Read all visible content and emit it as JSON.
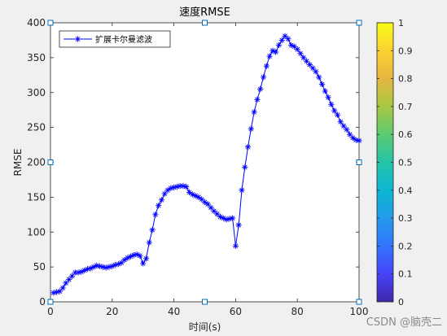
{
  "chart_data": {
    "type": "line",
    "title": "速度RMSE",
    "xlabel": "时间(s)",
    "ylabel": "RMSE",
    "xlim": [
      0,
      100
    ],
    "ylim": [
      0,
      400
    ],
    "x_ticks": [
      0,
      20,
      40,
      60,
      80,
      100
    ],
    "y_ticks": [
      0,
      50,
      100,
      150,
      200,
      250,
      300,
      350,
      400
    ],
    "grid": false,
    "legend_position": "top-left",
    "series": [
      {
        "name": "扩展卡尔曼滤波",
        "color": "#0000ff",
        "marker": "asterisk",
        "x": [
          1,
          2,
          3,
          4,
          5,
          6,
          7,
          8,
          9,
          10,
          11,
          12,
          13,
          14,
          15,
          16,
          17,
          18,
          19,
          20,
          21,
          22,
          23,
          24,
          25,
          26,
          27,
          28,
          29,
          30,
          31,
          32,
          33,
          34,
          35,
          36,
          37,
          38,
          39,
          40,
          41,
          42,
          43,
          44,
          45,
          46,
          47,
          48,
          49,
          50,
          51,
          52,
          53,
          54,
          55,
          56,
          57,
          58,
          59,
          60,
          61,
          62,
          63,
          64,
          65,
          66,
          67,
          68,
          69,
          70,
          71,
          72,
          73,
          74,
          75,
          76,
          77,
          78,
          79,
          80,
          81,
          82,
          83,
          84,
          85,
          86,
          87,
          88,
          89,
          90,
          91,
          92,
          93,
          94,
          95,
          96,
          97,
          98,
          99,
          100
        ],
        "y": [
          13,
          14,
          15,
          20,
          27,
          32,
          37,
          42,
          42,
          43,
          45,
          47,
          48,
          50,
          52,
          51,
          50,
          49,
          50,
          51,
          53,
          54,
          56,
          60,
          63,
          65,
          67,
          68,
          66,
          55,
          62,
          85,
          103,
          125,
          138,
          146,
          155,
          160,
          163,
          164,
          165,
          166,
          166,
          165,
          157,
          154,
          152,
          150,
          147,
          143,
          140,
          135,
          130,
          126,
          122,
          120,
          118,
          119,
          120,
          80,
          110,
          160,
          193,
          222,
          248,
          272,
          290,
          305,
          322,
          338,
          352,
          360,
          358,
          368,
          375,
          381,
          377,
          368,
          366,
          362,
          356,
          350,
          345,
          340,
          335,
          330,
          322,
          312,
          302,
          293,
          283,
          274,
          268,
          258,
          252,
          247,
          240,
          235,
          232,
          231
        ]
      }
    ],
    "colorbar": {
      "ticks": [
        "0",
        "0.1",
        "0.2",
        "0.3",
        "0.4",
        "0.5",
        "0.6",
        "0.7",
        "0.8",
        "0.9",
        "1"
      ],
      "colormap": "parula"
    }
  },
  "watermark": "CSDN @脑壳二"
}
